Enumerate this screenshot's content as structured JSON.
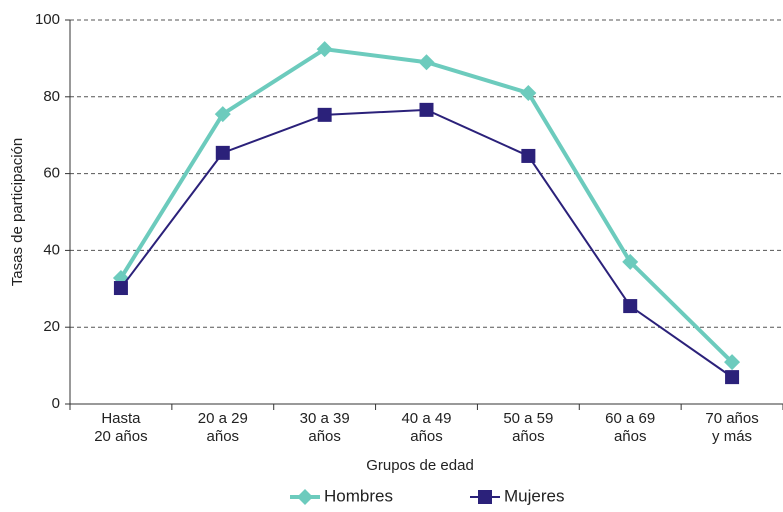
{
  "chart_data": {
    "type": "line",
    "x_label": "Grupos de edad",
    "y_label": "Tasas de participación",
    "categories": [
      "Hasta\n20 años",
      "20 a 29\naños",
      "30 a 39\naños",
      "40 a 49\naños",
      "50 a 59\naños",
      "60 a 69\naños",
      "70 años\ny más"
    ],
    "series": [
      {
        "name": "Hombres",
        "color": "#6ccbbd",
        "marker": "diamond",
        "values": [
          32.8,
          75.5,
          92.4,
          89,
          81,
          37,
          10.9
        ]
      },
      {
        "name": "Mujeres",
        "color": "#2b217a",
        "marker": "square",
        "values": [
          30.2,
          65.4,
          75.3,
          76.6,
          64.6,
          25.5,
          7
        ]
      }
    ],
    "ylim": [
      0,
      100
    ],
    "yticks": [
      0,
      20,
      40,
      60,
      80,
      100
    ],
    "grid": true,
    "legend": "bottom"
  }
}
